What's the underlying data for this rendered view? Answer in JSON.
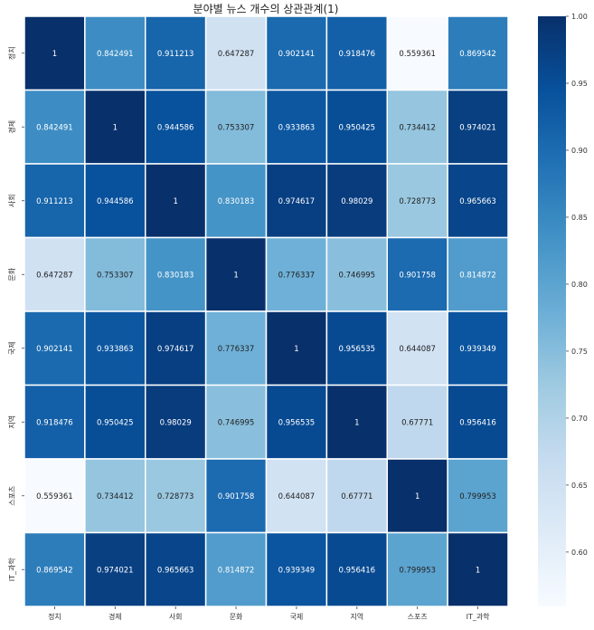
{
  "chart_data": {
    "type": "heatmap",
    "title": "분야별 뉴스 개수의 상관관계(1)",
    "xlabel": "",
    "ylabel": "",
    "categories": [
      "정치",
      "경제",
      "사회",
      "문화",
      "국제",
      "지역",
      "스포츠",
      "IT_과학"
    ],
    "values": [
      [
        "1",
        "0.842491",
        "0.911213",
        "0.647287",
        "0.902141",
        "0.918476",
        "0.559361",
        "0.869542"
      ],
      [
        "0.842491",
        "1",
        "0.944586",
        "0.753307",
        "0.933863",
        "0.950425",
        "0.734412",
        "0.974021"
      ],
      [
        "0.911213",
        "0.944586",
        "1",
        "0.830183",
        "0.974617",
        "0.98029",
        "0.728773",
        "0.965663"
      ],
      [
        "0.647287",
        "0.753307",
        "0.830183",
        "1",
        "0.776337",
        "0.746995",
        "0.901758",
        "0.814872"
      ],
      [
        "0.902141",
        "0.933863",
        "0.974617",
        "0.776337",
        "1",
        "0.956535",
        "0.644087",
        "0.939349"
      ],
      [
        "0.918476",
        "0.950425",
        "0.98029",
        "0.746995",
        "0.956535",
        "1",
        "0.67771",
        "0.956416"
      ],
      [
        "0.559361",
        "0.734412",
        "0.728773",
        "0.901758",
        "0.644087",
        "0.67771",
        "1",
        "0.799953"
      ],
      [
        "0.869542",
        "0.974021",
        "0.965663",
        "0.814872",
        "0.939349",
        "0.956416",
        "0.799953",
        "1"
      ]
    ],
    "colorbar": {
      "min": 0.559361,
      "max": 1.0,
      "ticks": [
        "0.60",
        "0.65",
        "0.70",
        "0.75",
        "0.80",
        "0.85",
        "0.90",
        "0.95",
        "1.00"
      ]
    },
    "colormap": "Blues",
    "grid": false,
    "colors": {
      "low": "#f7fbff",
      "high": "#08306b",
      "cell_border": "#ffffff",
      "text_dark": "#222222",
      "text_light": "#ffffff"
    }
  }
}
